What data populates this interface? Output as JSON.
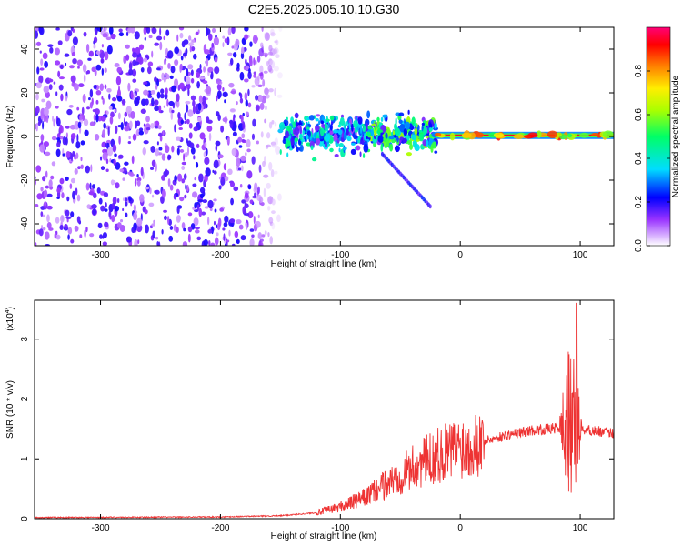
{
  "title": "C2E5.2025.005.10.10.G30",
  "chart_data": [
    {
      "type": "heatmap",
      "xlabel": "Height of straight line (km)",
      "ylabel": "Frequency (Hz)",
      "xlim": [
        -355,
        128
      ],
      "ylim": [
        -50,
        50
      ],
      "xticks": [
        -300,
        -200,
        -100,
        0,
        100
      ],
      "yticks": [
        -40,
        -20,
        0,
        20,
        40
      ],
      "colorbar": {
        "label": "Normalized spectral amplitude",
        "range": [
          0,
          1
        ],
        "ticks": [
          0.0,
          0.2,
          0.4,
          0.6,
          0.8
        ]
      },
      "features": [
        {
          "x_start": -355,
          "x_end": -150,
          "freq_spread": 50,
          "amplitude": 0.15
        },
        {
          "x_start": -150,
          "x_end": -80,
          "freq_spread": 8,
          "amplitude": 0.35
        },
        {
          "x_start": -80,
          "x_end": -20,
          "freq_spread": 6,
          "amplitude": 0.45
        },
        {
          "x_start": -20,
          "x_end": 128,
          "freq_center": 0.5,
          "amplitude": 0.95
        }
      ]
    },
    {
      "type": "line",
      "xlabel": "Height of straight line (km)",
      "ylabel": "SNR (10 * v/v)",
      "y_multiplier": "(x10",
      "y_multiplier_exp": "4",
      "y_multiplier_close": ")",
      "xlim": [
        -355,
        128
      ],
      "ylim": [
        0,
        3.65
      ],
      "xticks": [
        -300,
        -200,
        -100,
        0,
        100
      ],
      "yticks": [
        0,
        1,
        2,
        3
      ],
      "series": [
        {
          "color": "#ee3333",
          "envelope": [
            [
              -355,
              0.02
            ],
            [
              -200,
              0.03
            ],
            [
              -150,
              0.05
            ],
            [
              -120,
              0.1
            ],
            [
              -100,
              0.2
            ],
            [
              -80,
              0.35
            ],
            [
              -60,
              0.6
            ],
            [
              -40,
              0.85
            ],
            [
              -20,
              1.05
            ],
            [
              0,
              1.2
            ],
            [
              10,
              1.25
            ],
            [
              20,
              1.3
            ],
            [
              40,
              1.4
            ],
            [
              60,
              1.48
            ],
            [
              75,
              1.5
            ],
            [
              90,
              1.55
            ],
            [
              100,
              1.5
            ],
            [
              128,
              1.43
            ]
          ],
          "peak": {
            "x": 97,
            "y": 3.6
          }
        }
      ]
    }
  ]
}
